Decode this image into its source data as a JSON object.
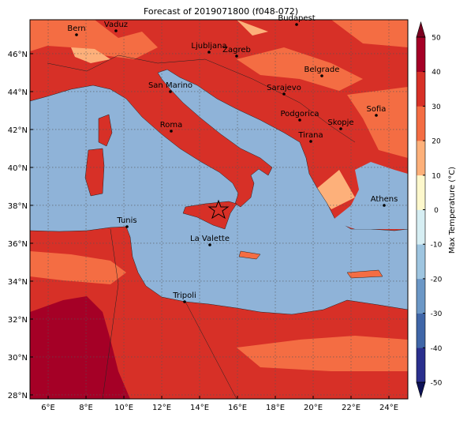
{
  "title": "Forecast of 2019071800 (f048-072)",
  "map": {
    "xlim": [
      5.04,
      25
    ],
    "ylim": [
      27.79,
      47.79
    ],
    "xticks": [
      {
        "value": 6,
        "label": "6°E"
      },
      {
        "value": 8,
        "label": "8°E"
      },
      {
        "value": 10,
        "label": "10°E"
      },
      {
        "value": 12,
        "label": "12°E"
      },
      {
        "value": 14,
        "label": "14°E"
      },
      {
        "value": 16,
        "label": "16°E"
      },
      {
        "value": 18,
        "label": "18°E"
      },
      {
        "value": 20,
        "label": "20°E"
      },
      {
        "value": 22,
        "label": "22°E"
      },
      {
        "value": 24,
        "label": "24°E"
      }
    ],
    "yticks": [
      {
        "value": 28,
        "label": "28°N"
      },
      {
        "value": 30,
        "label": "30°N"
      },
      {
        "value": 32,
        "label": "32°N"
      },
      {
        "value": 34,
        "label": "34°N"
      },
      {
        "value": 36,
        "label": "36°N"
      },
      {
        "value": 38,
        "label": "38°N"
      },
      {
        "value": 40,
        "label": "40°N"
      },
      {
        "value": 42,
        "label": "42°N"
      },
      {
        "value": 44,
        "label": "44°N"
      },
      {
        "value": 46,
        "label": "46°N"
      }
    ],
    "cities": [
      "Bern",
      "Vaduz",
      "Budapest",
      "Ljubljana",
      "Zagreb",
      "Belgrade",
      "San Marino",
      "Sarajevo",
      "Sofia",
      "Podgorica",
      "Skopje",
      "Roma",
      "Tirana",
      "Athens",
      "Tunis",
      "La Valette",
      "Tripoli"
    ]
  },
  "colorbar": {
    "label": "Max Temperature (°C)",
    "lim": [
      -50,
      50
    ],
    "ticks": [
      -50,
      -40,
      -30,
      -20,
      -10,
      0,
      10,
      20,
      30,
      40,
      50
    ],
    "colors": [
      "#2a2f8e",
      "#3f66a8",
      "#6b97c6",
      "#9ec5e0",
      "#d6eef3",
      "#fdf8cc",
      "#fdb07a",
      "#f46d43",
      "#d73027",
      "#a50026"
    ],
    "extend_colors": [
      "#0d1257",
      "#7a0020"
    ]
  }
}
